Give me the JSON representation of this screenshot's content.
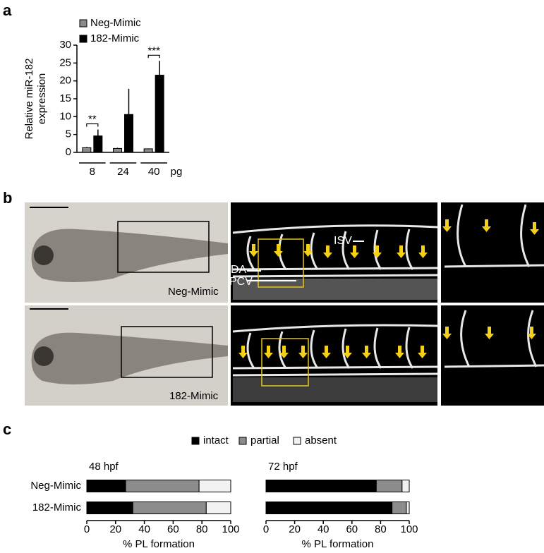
{
  "panel_labels": [
    "a",
    "b",
    "c"
  ],
  "images": {
    "rows": [
      "Neg-Mimic",
      "182-Mimic"
    ],
    "vessel_labels": [
      "ISV",
      "DA",
      "PCV"
    ]
  },
  "chart_data": [
    {
      "type": "bar",
      "orientation": "vertical",
      "ylabel": [
        "Relative miR-182",
        "expression"
      ],
      "categories": [
        "8",
        "24",
        "40"
      ],
      "x_unit": "pg",
      "series": [
        {
          "name": "Neg-Mimic",
          "color": "#8c8c8c",
          "values": [
            1.3,
            1.1,
            1.0
          ],
          "errors": [
            0.2,
            0.2,
            0.1
          ]
        },
        {
          "name": "182-Mimic",
          "color": "#000000",
          "values": [
            4.6,
            10.6,
            21.6
          ],
          "errors": [
            1.8,
            7.2,
            4.0
          ]
        }
      ],
      "annotations": [
        {
          "text": "**",
          "category": 0
        },
        {
          "text": "***",
          "category": 2
        }
      ],
      "ylim": [
        0,
        30
      ],
      "yticks": [
        0,
        5,
        10,
        15,
        20,
        25,
        30
      ]
    },
    {
      "type": "bar",
      "orientation": "horizontal",
      "stacked": true,
      "title": "48 hpf",
      "categories": [
        "Neg-Mimic",
        "182-Mimic"
      ],
      "series": [
        {
          "name": "intact",
          "color": "#000000",
          "values": [
            27,
            32
          ]
        },
        {
          "name": "partial",
          "color": "#8c8c8c",
          "values": [
            51,
            51
          ]
        },
        {
          "name": "absent",
          "color": "#f2f2f2",
          "values": [
            22,
            17
          ]
        }
      ],
      "xlabel": "% PL formation",
      "xlim": [
        0,
        100
      ],
      "xticks": [
        0,
        20,
        40,
        60,
        80,
        100
      ]
    },
    {
      "type": "bar",
      "orientation": "horizontal",
      "stacked": true,
      "title": "72 hpf",
      "series": [
        {
          "color": "#000000",
          "values": [
            77,
            88
          ]
        },
        {
          "color": "#8c8c8c",
          "values": [
            18,
            10
          ]
        },
        {
          "color": "#f2f2f2",
          "values": [
            5,
            2
          ]
        }
      ],
      "xlabel": "% PL formation",
      "xlim": [
        0,
        100
      ],
      "xticks": [
        0,
        20,
        40,
        60,
        80,
        100
      ]
    }
  ]
}
